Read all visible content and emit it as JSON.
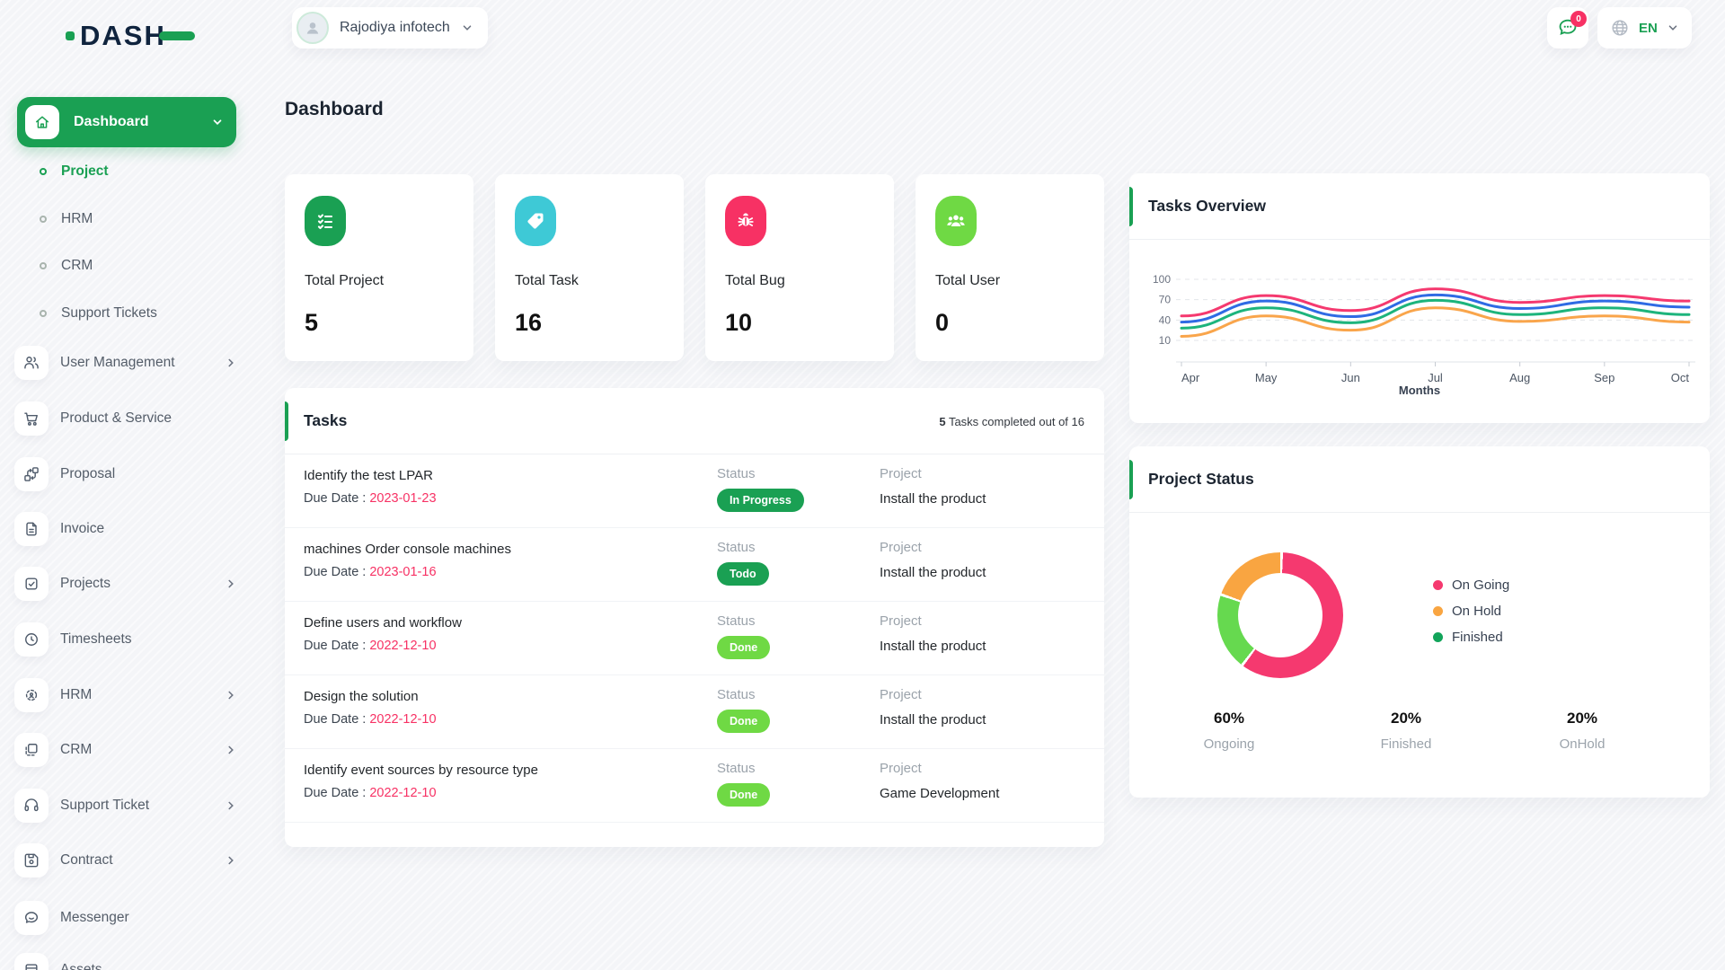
{
  "colors": {
    "primary": "#1aa053",
    "pink": "#f73164",
    "cyan": "#3ec9d6",
    "lime": "#6fd944"
  },
  "brand": {
    "logo": "DASH"
  },
  "header": {
    "company": "Rajodiya infotech",
    "messages_badge": "0",
    "language": "EN",
    "page_title": "Dashboard"
  },
  "sidebar": {
    "dashboard_label": "Dashboard",
    "sub_items": [
      {
        "label": "Project"
      },
      {
        "label": "HRM"
      },
      {
        "label": "CRM"
      },
      {
        "label": "Support Tickets"
      }
    ],
    "items": [
      {
        "label": "User Management"
      },
      {
        "label": "Product & Service"
      },
      {
        "label": "Proposal"
      },
      {
        "label": "Invoice"
      },
      {
        "label": "Projects"
      },
      {
        "label": "Timesheets"
      },
      {
        "label": "HRM"
      },
      {
        "label": "CRM"
      },
      {
        "label": "Support Ticket"
      },
      {
        "label": "Contract"
      },
      {
        "label": "Messenger"
      },
      {
        "label": "Assets"
      }
    ]
  },
  "stats": [
    {
      "label": "Total Project",
      "value": "5",
      "icon": "checklist-icon",
      "color": "#1aa053"
    },
    {
      "label": "Total Task",
      "value": "16",
      "icon": "tag-icon",
      "color": "#3ec9d6"
    },
    {
      "label": "Total Bug",
      "value": "10",
      "icon": "bug-icon",
      "color": "#f73164"
    },
    {
      "label": "Total User",
      "value": "0",
      "icon": "users-icon",
      "color": "#6fd944"
    }
  ],
  "tasks": {
    "title": "Tasks",
    "summary_count": "5",
    "summary_rest": " Tasks completed out of 16",
    "due_label": "Due Date : ",
    "col_status": "Status",
    "col_project": "Project",
    "rows": [
      {
        "name": "Identify the test LPAR",
        "due": "2023-01-23",
        "status": "In Progress",
        "status_color": "#1aa053",
        "project": "Install the product"
      },
      {
        "name": "machines Order console machines",
        "due": "2023-01-16",
        "status": "Todo",
        "status_color": "#1aa053",
        "project": "Install the product"
      },
      {
        "name": "Define users and workflow",
        "due": "2022-12-10",
        "status": "Done",
        "status_color": "#6fd944",
        "project": "Install the product"
      },
      {
        "name": "Design the solution",
        "due": "2022-12-10",
        "status": "Done",
        "status_color": "#6fd944",
        "project": "Install the product"
      },
      {
        "name": "Identify event sources by resource type",
        "due": "2022-12-10",
        "status": "Done",
        "status_color": "#6fd944",
        "project": "Game Development"
      }
    ]
  },
  "chart_data": [
    {
      "type": "line",
      "title": "Tasks Overview",
      "x": [
        "Apr",
        "May",
        "Jun",
        "Jul",
        "Aug",
        "Sep",
        "Oct"
      ],
      "xlabel": "Months",
      "yticks": [
        100,
        70,
        40,
        10
      ],
      "ylim": [
        10,
        100
      ],
      "grid": "dashed-horizontal",
      "legend_position": "none",
      "series": [
        {
          "name": "series-pink",
          "color": "#f5396f",
          "values": [
            46,
            76,
            54,
            86,
            66,
            76,
            68
          ]
        },
        {
          "name": "series-blue",
          "color": "#2f6be4",
          "values": [
            37,
            68,
            45,
            77,
            57,
            68,
            59
          ]
        },
        {
          "name": "series-green",
          "color": "#1db47c",
          "values": [
            28,
            58,
            36,
            69,
            48,
            58,
            48
          ]
        },
        {
          "name": "series-orange",
          "color": "#f9a54b",
          "values": [
            16,
            46,
            25,
            58,
            38,
            46,
            37
          ]
        }
      ]
    },
    {
      "type": "pie",
      "title": "Project Status",
      "slices": [
        {
          "label": "On Going",
          "value": 60,
          "color": "#f5396f"
        },
        {
          "label": "Finished",
          "value": 20,
          "color": "#66d94f"
        },
        {
          "label": "On Hold",
          "value": 20,
          "color": "#f9a541"
        }
      ],
      "legend": [
        {
          "label": "On Going",
          "color": "#f5396f"
        },
        {
          "label": "On Hold",
          "color": "#f9a541"
        },
        {
          "label": "Finished",
          "color": "#12a45a"
        }
      ],
      "stats": [
        {
          "percent": "60%",
          "label": "Ongoing"
        },
        {
          "percent": "20%",
          "label": "Finished"
        },
        {
          "percent": "20%",
          "label": "OnHold"
        }
      ]
    }
  ]
}
